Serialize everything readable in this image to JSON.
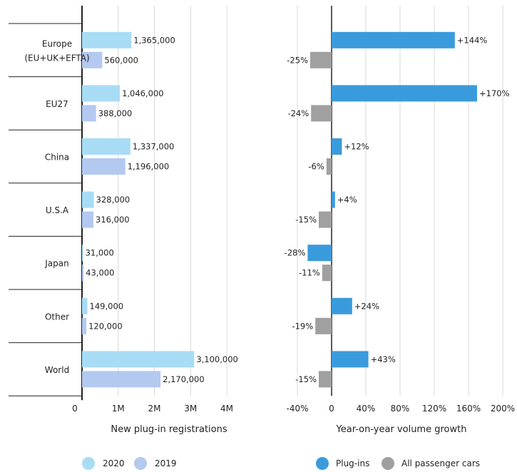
{
  "chart_data": [
    {
      "type": "bar",
      "orientation": "horizontal",
      "categories": [
        "Europe (EU+UK+EFTA)",
        "EU27",
        "China",
        "U.S.A",
        "Japan",
        "Other",
        "World"
      ],
      "category_lines": [
        [
          "Europe",
          "(EU+UK+EFTA)"
        ],
        [
          "EU27"
        ],
        [
          "China"
        ],
        [
          "U.S.A"
        ],
        [
          "Japan"
        ],
        [
          "Other"
        ],
        [
          "World"
        ]
      ],
      "series": [
        {
          "name": "2020",
          "color": "#a8dcf5",
          "values": [
            1365000,
            1046000,
            1337000,
            328000,
            31000,
            149000,
            3100000
          ],
          "labels": [
            "1,365,000",
            "1,046,000",
            "1,337,000",
            "328,000",
            "31,000",
            "149,000",
            "3,100,000"
          ]
        },
        {
          "name": "2019",
          "color": "#b3c9f0",
          "values": [
            560000,
            388000,
            1196000,
            316000,
            43000,
            120000,
            2170000
          ],
          "labels": [
            "560,000",
            "388,000",
            "1,196,000",
            "316,000",
            "43,000",
            "120,000",
            "2,170,000"
          ]
        }
      ],
      "xlim": [
        0,
        4000000
      ],
      "xticks": [
        0,
        1000000,
        2000000,
        3000000,
        4000000
      ],
      "xtick_labels": [
        "0",
        "1M",
        "2M",
        "3M",
        "4M"
      ],
      "xlabel": "New plug-in registrations",
      "grid": true,
      "legend": "bottom"
    },
    {
      "type": "bar",
      "orientation": "horizontal",
      "categories": [
        "Europe (EU+UK+EFTA)",
        "EU27",
        "China",
        "U.S.A",
        "Japan",
        "Other",
        "World"
      ],
      "series": [
        {
          "name": "Plug-ins",
          "color": "#3a9bdc",
          "values": [
            144,
            170,
            12,
            4,
            -28,
            24,
            43
          ],
          "labels": [
            "+144%",
            "+170%",
            "+12%",
            "+4%",
            "-28%",
            "+24%",
            "+43%"
          ]
        },
        {
          "name": "All passenger cars",
          "color": "#a0a0a0",
          "values": [
            -25,
            -24,
            -6,
            -15,
            -11,
            -19,
            -15
          ],
          "labels": [
            "-25%",
            "-24%",
            "-6%",
            "-15%",
            "-11%",
            "-19%",
            "-15%"
          ]
        }
      ],
      "xlim": [
        -40,
        200
      ],
      "xticks": [
        -40,
        0,
        40,
        80,
        120,
        160,
        200
      ],
      "xtick_labels": [
        "-40%",
        "0",
        "40%",
        "80%",
        "120%",
        "160%",
        "200%"
      ],
      "xlabel": "Year-on-year volume growth",
      "grid": true,
      "legend": "bottom"
    }
  ]
}
